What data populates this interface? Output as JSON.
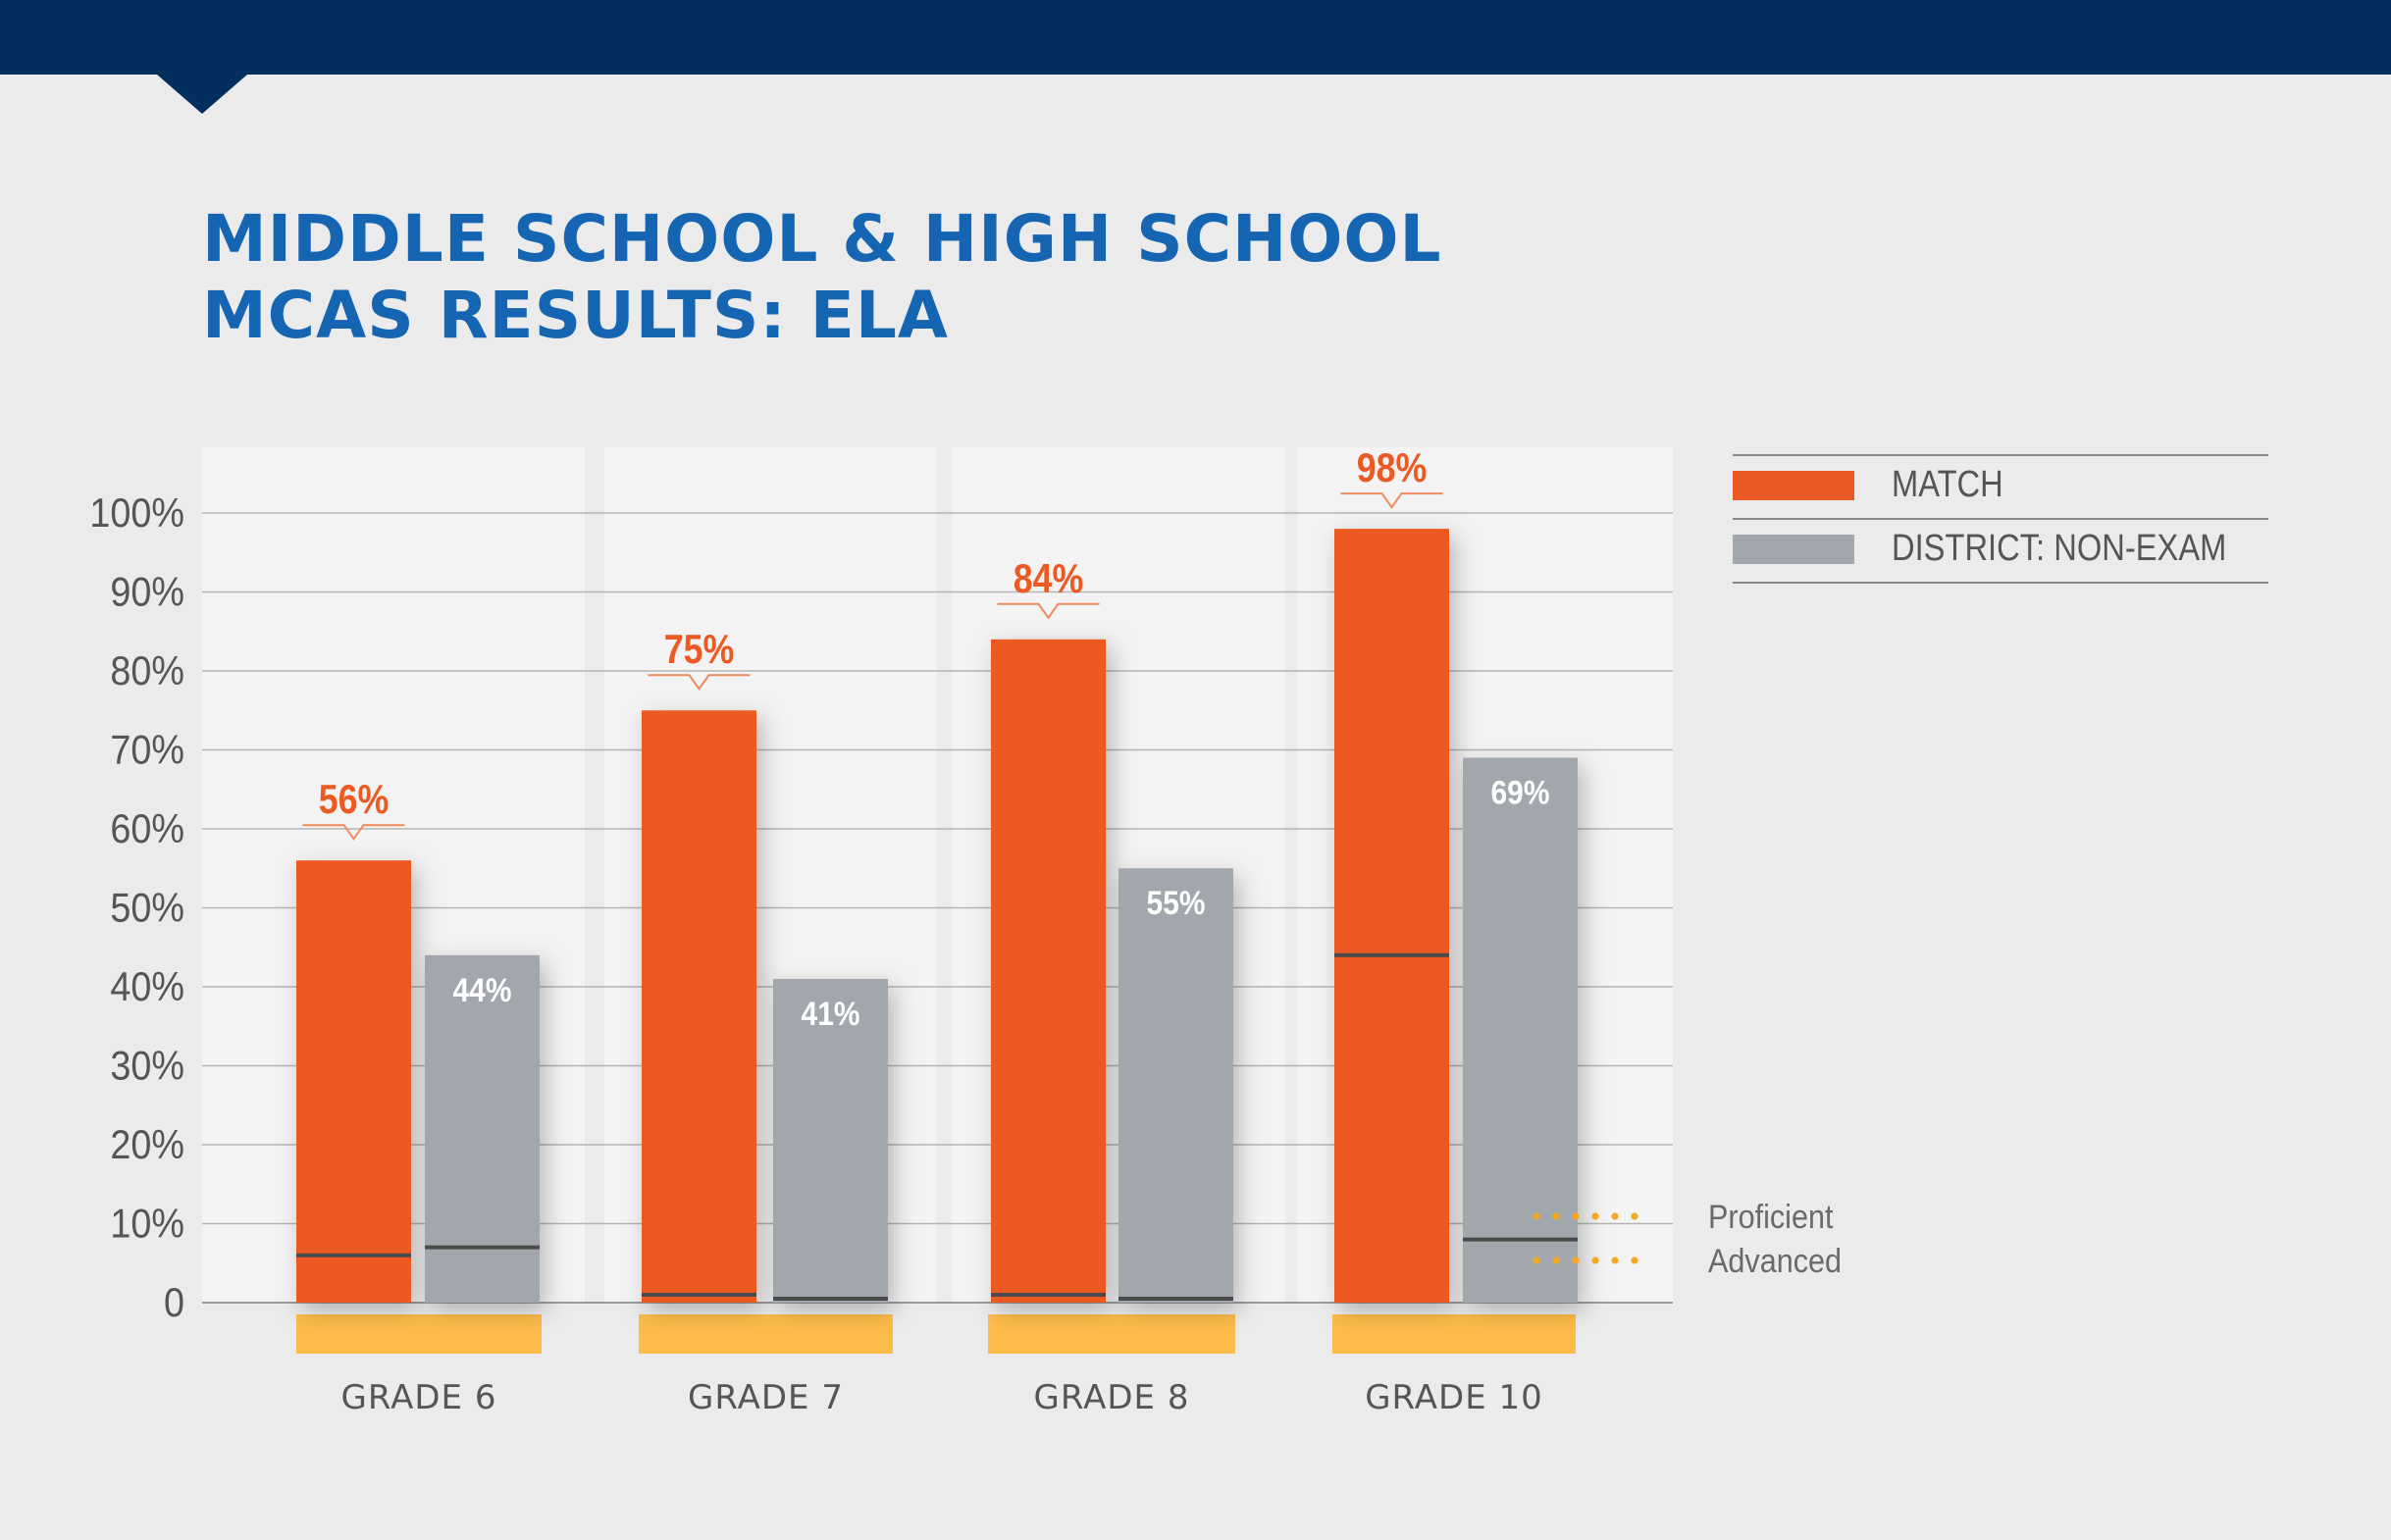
{
  "title": {
    "line1": "MIDDLE SCHOOL & HIGH SCHOOL",
    "line2": "MCAS RESULTS: ELA"
  },
  "legend": [
    {
      "label": "MATCH",
      "color": "#ec5a24"
    },
    {
      "label": "DISTRICT: NON-EXAM",
      "color": "#a2a7ad"
    }
  ],
  "colors": {
    "match": "#ec5a24",
    "district": "#a2a7ad",
    "band": "#fdbb4a",
    "dots": "#f7a823",
    "title": "#1565b3",
    "header": "#022f5e"
  },
  "chart_data": {
    "type": "bar",
    "categories": [
      "GRADE 6",
      "GRADE 7",
      "GRADE 8",
      "GRADE 10"
    ],
    "y_tick_labels": [
      "0",
      "10%",
      "20%",
      "30%",
      "40%",
      "50%",
      "60%",
      "70%",
      "80%",
      "90%",
      "100%"
    ],
    "ylim": [
      0,
      100
    ],
    "grid": true,
    "legend_position": "top-right",
    "series": [
      {
        "name": "MATCH",
        "values": [
          56,
          75,
          84,
          98
        ],
        "value_labels": [
          "56%",
          "75%",
          "84%",
          "98%"
        ],
        "advanced": [
          6,
          1,
          1,
          44
        ]
      },
      {
        "name": "DISTRICT: NON-EXAM",
        "values": [
          44,
          41,
          55,
          69
        ],
        "value_labels": [
          "44%",
          "41%",
          "55%",
          "69%"
        ],
        "advanced": [
          7,
          0.5,
          0.5,
          8
        ]
      }
    ],
    "annotations": [
      {
        "label": "Proficient"
      },
      {
        "label": "Advanced"
      }
    ]
  }
}
